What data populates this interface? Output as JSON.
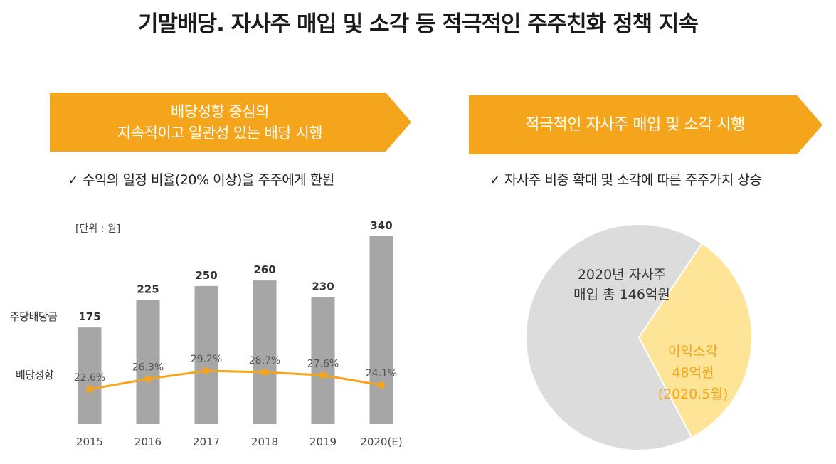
{
  "header": {
    "title": "기말배당. 자사주 매입 및 소각 등 적극적인 주주친화 정책 지속"
  },
  "left_panel": {
    "banner_line1": "배당성향 중심의",
    "banner_line2": "지속적이고 일관성 있는 배당 시행",
    "check_text": "✓  수익의 일정 비율(20% 이상)을 주주에게 환원",
    "unit_label": "[단위 : 원]",
    "row_label_dividend": "주당배당금",
    "row_label_payout": "배당성향"
  },
  "right_panel": {
    "banner_text": "적극적인 자사주 매입 및 소각 시행",
    "check_text": "✓  자사주 비중 확대 및 소각에 따른 주주가치 상승"
  },
  "colors": {
    "accent": "#f4a51c",
    "bar": "#a6a6a6",
    "line": "#f4a51c",
    "pie_main": "#dcdcdc",
    "pie_slice": "#fde497"
  },
  "chart_data": [
    {
      "type": "bar",
      "categories": [
        "2015",
        "2016",
        "2017",
        "2018",
        "2019",
        "2020(E)"
      ],
      "series": [
        {
          "name": "주당배당금",
          "values": [
            175,
            225,
            250,
            260,
            230,
            340
          ]
        },
        {
          "name": "배당성향",
          "type": "line",
          "values": [
            22.6,
            26.3,
            29.2,
            28.7,
            27.6,
            24.1
          ],
          "labels": [
            "22.6%",
            "26.3%",
            "29.2%",
            "28.7%",
            "27.6%",
            "24.1%"
          ]
        }
      ],
      "ylim": [
        0,
        340
      ]
    },
    {
      "type": "pie",
      "slices": [
        {
          "label_line1": "2020년 자사주",
          "label_line2": "매입 총 146억원",
          "value": 98
        },
        {
          "label_line1": "이익소각",
          "label_line2": "48억원",
          "label_line3": "(2020.5월)",
          "value": 48
        }
      ]
    }
  ]
}
